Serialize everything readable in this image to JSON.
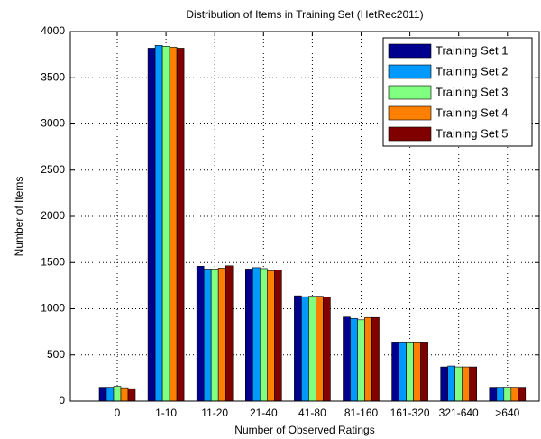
{
  "chart_data": {
    "type": "bar",
    "title": "Distribution of Items in Training Set (HetRec2011)",
    "xlabel": "Number of Observed Ratings",
    "ylabel": "Number of Items",
    "categories": [
      "0",
      "1-10",
      "11-20",
      "21-40",
      "41-80",
      "81-160",
      "161-320",
      "321-640",
      ">640"
    ],
    "series": [
      {
        "name": "Training Set 1",
        "color": "#00008f",
        "values": [
          150,
          3820,
          1460,
          1430,
          1140,
          910,
          640,
          370,
          150
        ]
      },
      {
        "name": "Training Set 2",
        "color": "#0099ff",
        "values": [
          150,
          3850,
          1430,
          1445,
          1130,
          895,
          640,
          380,
          150
        ]
      },
      {
        "name": "Training Set 3",
        "color": "#80ff80",
        "values": [
          160,
          3840,
          1430,
          1435,
          1135,
          880,
          640,
          370,
          150
        ]
      },
      {
        "name": "Training Set 4",
        "color": "#ff8000",
        "values": [
          145,
          3830,
          1440,
          1410,
          1135,
          905,
          640,
          370,
          150
        ]
      },
      {
        "name": "Training Set 5",
        "color": "#800000",
        "values": [
          135,
          3820,
          1465,
          1420,
          1125,
          905,
          640,
          370,
          150
        ]
      }
    ],
    "ylim": [
      0,
      4000
    ],
    "yticks": [
      0,
      500,
      1000,
      1500,
      2000,
      2500,
      3000,
      3500,
      4000
    ],
    "grid": true,
    "legend": "northeast"
  }
}
